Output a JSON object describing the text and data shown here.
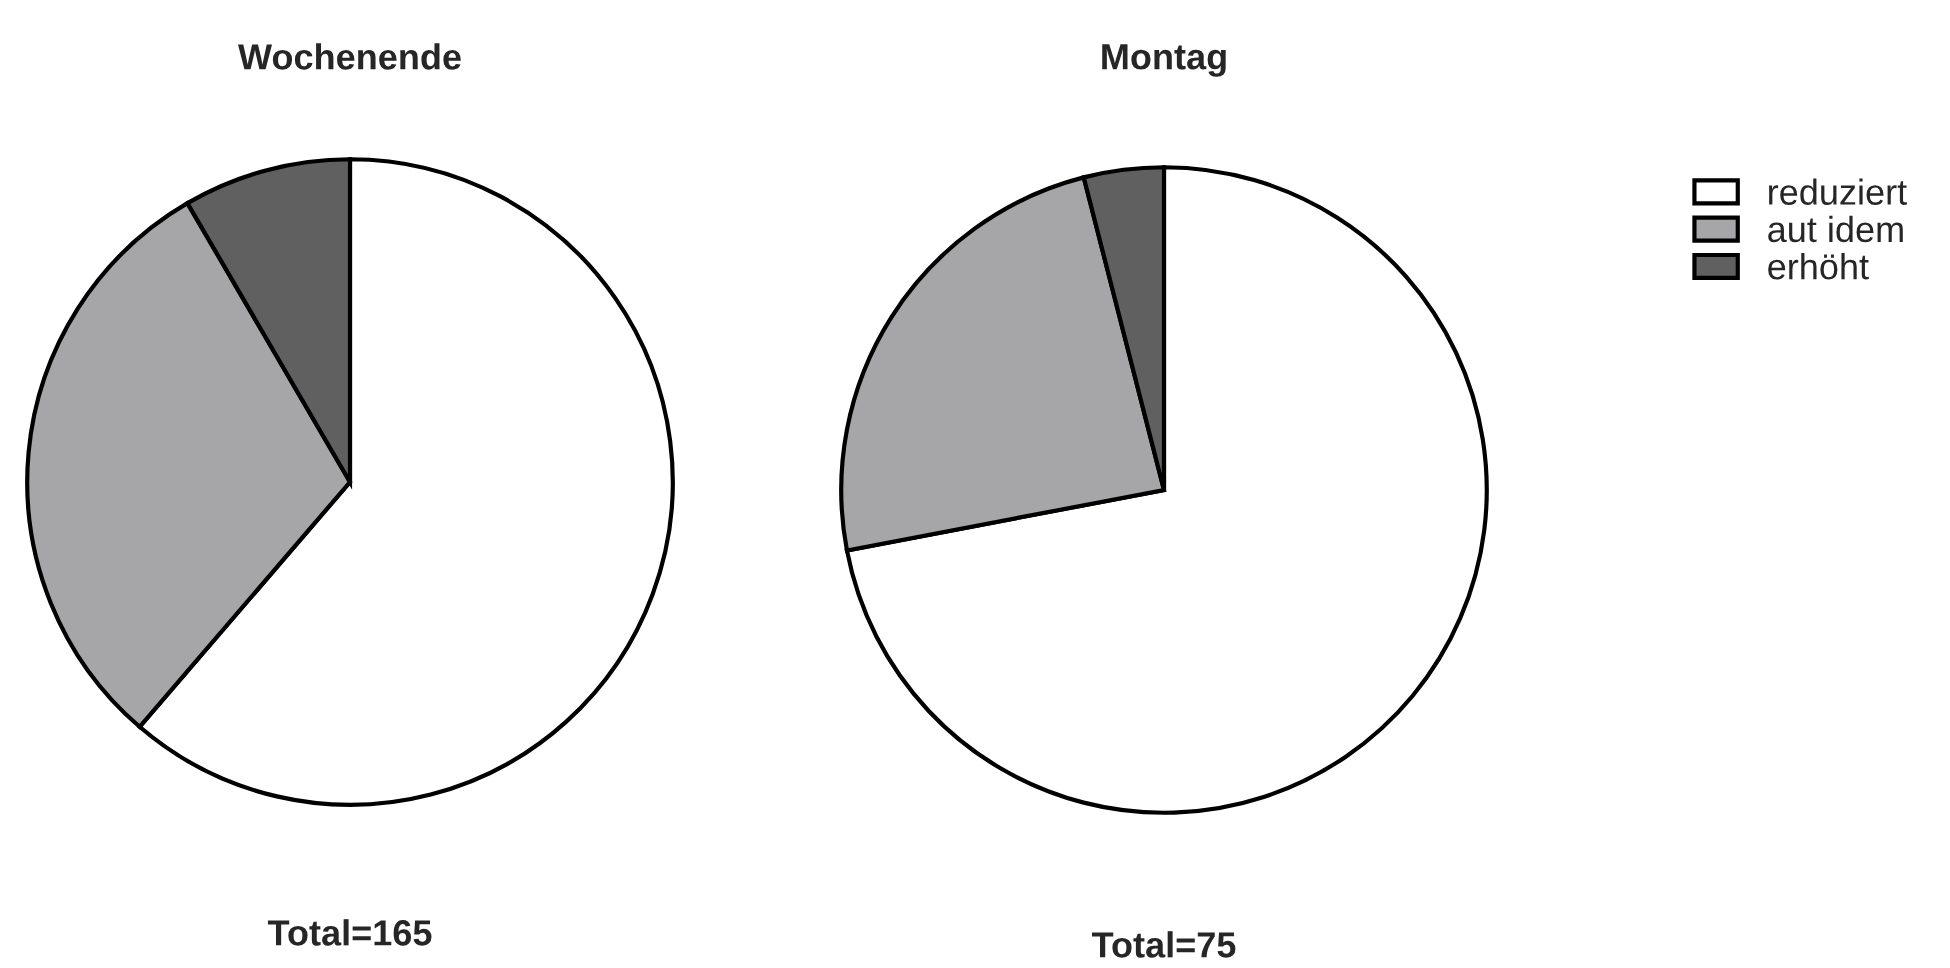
{
  "chart_data": [
    {
      "type": "pie",
      "title": "Wochenende",
      "categories": [
        "reduziert",
        "aut idem",
        "erhöht"
      ],
      "values": [
        61.3,
        30.3,
        8.4
      ],
      "colors": [
        "#ffffff",
        "#a6a6a9",
        "#606060"
      ],
      "annotations": [
        "Total=165"
      ],
      "legend": "right"
    },
    {
      "type": "pie",
      "title": "Montag",
      "categories": [
        null,
        null,
        null
      ],
      "values": [
        72,
        24,
        4
      ],
      "colors": [
        "#ffffff",
        "#a6a6a9",
        "#606060"
      ],
      "annotations": [
        "Total=75"
      ]
    }
  ]
}
